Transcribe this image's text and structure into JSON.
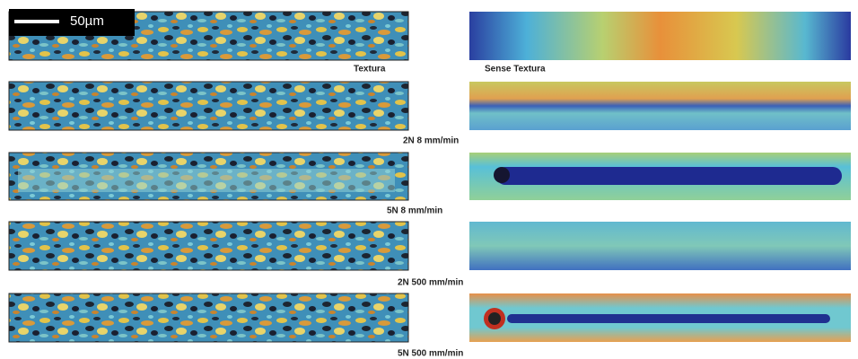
{
  "scale_bar": {
    "label": "50µm"
  },
  "labels": [
    "Textura",
    "Sense Textura",
    "2N 8 mm/min",
    "5N 8 mm/min",
    "2N 500 mm/min",
    "5N 500 mm/min"
  ]
}
